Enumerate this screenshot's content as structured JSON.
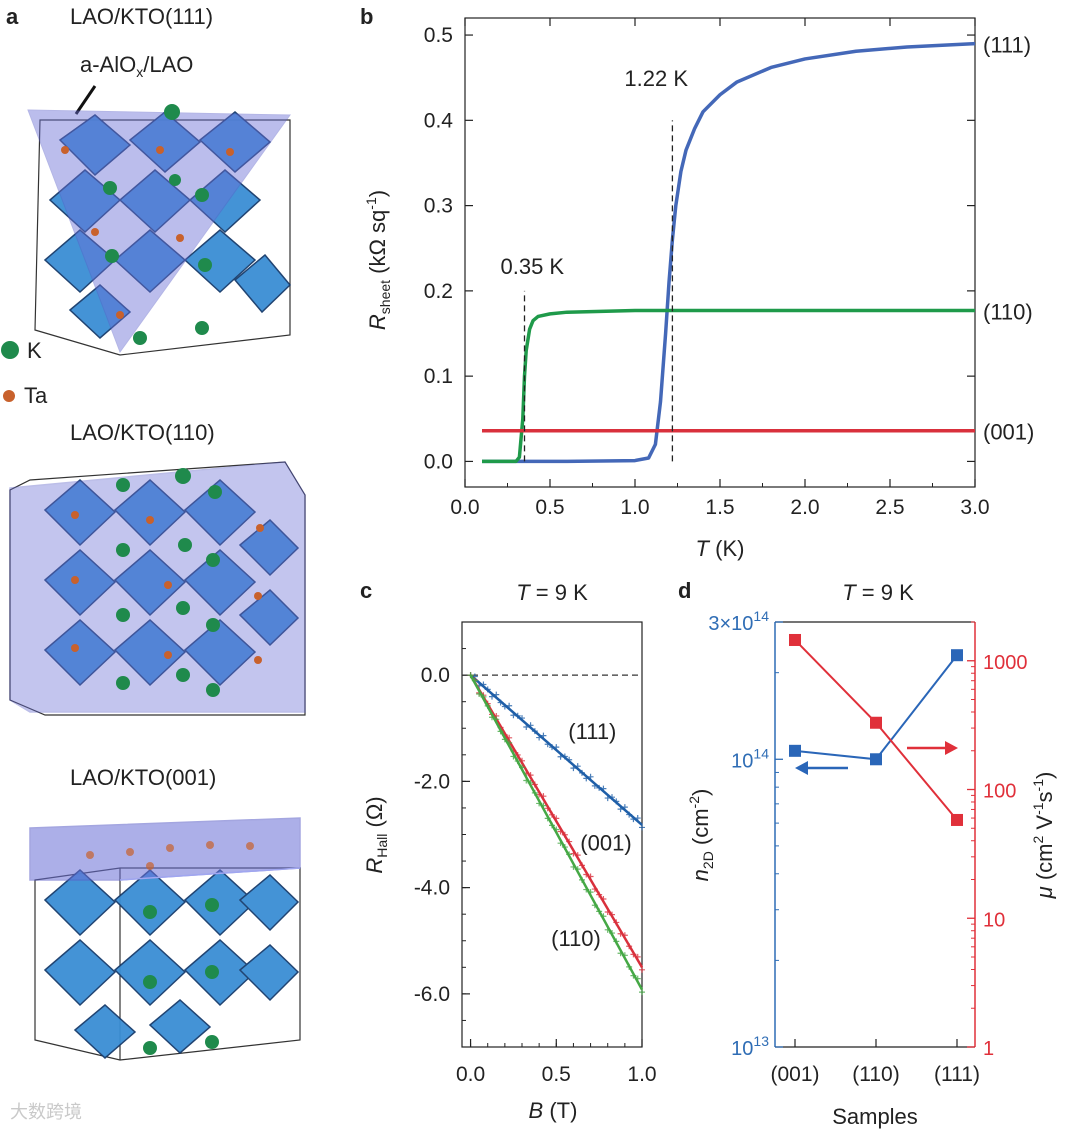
{
  "panel_a": {
    "label": "a",
    "structures": [
      {
        "title": "LAO/KTO(111)",
        "annotation": "a-AlO",
        "annotation_sub": "x",
        "annotation_rest": "/LAO"
      },
      {
        "title": "LAO/KTO(110)"
      },
      {
        "title": "LAO/KTO(001)"
      }
    ],
    "legend": [
      {
        "label": "K",
        "color": "#1f8a4c"
      },
      {
        "label": "Ta",
        "color": "#c8612c"
      }
    ]
  },
  "watermark": "大数跨境",
  "chart_data": [
    {
      "panel": "b",
      "type": "line",
      "title": "",
      "xlabel": "T",
      "xlabel_unit": " (K)",
      "ylabel": "R",
      "ylabel_sub": "sheet",
      "ylabel_unit": " (kΩ sq",
      "ylabel_sup": "-1",
      "ylabel_close": ")",
      "xlim": [
        0.0,
        3.0
      ],
      "ylim": [
        -0.03,
        0.52
      ],
      "xticks": [
        "0.0",
        "0.5",
        "1.0",
        "1.5",
        "2.0",
        "2.5",
        "3.0"
      ],
      "xtick_values": [
        0.0,
        0.5,
        1.0,
        1.5,
        2.0,
        2.5,
        3.0
      ],
      "yticks": [
        "0.0",
        "0.1",
        "0.2",
        "0.3",
        "0.4",
        "0.5"
      ],
      "ytick_values": [
        0.0,
        0.1,
        0.2,
        0.3,
        0.4,
        0.5
      ],
      "series": [
        {
          "name": "(111)",
          "color": "#4468b8",
          "Tc": 1.22,
          "Rn": 0.49,
          "x": [
            0.1,
            0.6,
            1.0,
            1.08,
            1.12,
            1.15,
            1.18,
            1.2,
            1.22,
            1.24,
            1.27,
            1.3,
            1.35,
            1.4,
            1.5,
            1.6,
            1.8,
            2.0,
            2.3,
            2.6,
            3.0
          ],
          "y": [
            0.0,
            0.0,
            0.001,
            0.004,
            0.02,
            0.07,
            0.15,
            0.21,
            0.26,
            0.3,
            0.34,
            0.365,
            0.39,
            0.41,
            0.43,
            0.445,
            0.462,
            0.472,
            0.481,
            0.486,
            0.49
          ]
        },
        {
          "name": "(110)",
          "color": "#1f9a4a",
          "Tc": 0.35,
          "Rn": 0.177,
          "x": [
            0.1,
            0.3,
            0.32,
            0.34,
            0.35,
            0.36,
            0.38,
            0.4,
            0.43,
            0.5,
            0.6,
            0.8,
            1.0,
            1.5,
            2.0,
            3.0
          ],
          "y": [
            0.0,
            0.0,
            0.005,
            0.05,
            0.1,
            0.13,
            0.155,
            0.165,
            0.17,
            0.173,
            0.175,
            0.176,
            0.177,
            0.177,
            0.177,
            0.177
          ]
        },
        {
          "name": "(001)",
          "color": "#d9303c",
          "x": [
            0.1,
            3.0
          ],
          "y": [
            0.036,
            0.036
          ]
        }
      ],
      "annotations": [
        {
          "text": "1.22 K",
          "color": "#2f7fc1",
          "x": 1.22
        },
        {
          "text": "0.35 K",
          "color": "#2aa04c",
          "x": 0.35
        }
      ]
    },
    {
      "panel": "c",
      "type": "line",
      "title_var": "T",
      "title_rest": " = 9 K",
      "xlabel": "B",
      "xlabel_unit": " (T)",
      "ylabel": "R",
      "ylabel_sub": "Hall",
      "ylabel_unit": " (Ω)",
      "xlim": [
        -0.05,
        1.0
      ],
      "ylim": [
        -7.0,
        1.0
      ],
      "xticks": [
        "0.0",
        "0.5",
        "1.0"
      ],
      "xtick_values": [
        0.0,
        0.5,
        1.0
      ],
      "yticks": [
        "0.0",
        "-2.0",
        "-4.0",
        "-6.0"
      ],
      "ytick_values": [
        0.0,
        -2.0,
        -4.0,
        -6.0
      ],
      "series": [
        {
          "name": "(111)",
          "color": "#1f5fa8",
          "label_color": "#2f6db5",
          "x": [
            0.0,
            1.0
          ],
          "y": [
            0.0,
            -2.82
          ]
        },
        {
          "name": "(001)",
          "color": "#d9303c",
          "label_color": "#d9303c",
          "x": [
            0.0,
            1.0
          ],
          "y": [
            0.0,
            -5.5
          ]
        },
        {
          "name": "(110)",
          "color": "#45a845",
          "label_color": "#3a9b45",
          "x": [
            0.0,
            1.0
          ],
          "y": [
            0.0,
            -5.92
          ]
        }
      ]
    },
    {
      "panel": "d",
      "type": "scatter",
      "title_var": "T",
      "title_rest": " = 9 K",
      "xlabel": "Samples",
      "categories": [
        "(001)",
        "(110)",
        "(111)"
      ],
      "left_axis": {
        "label": "n",
        "label_sub": "2D",
        "label_unit": " (cm",
        "label_sup": "-2",
        "label_close": ")",
        "scale": "log",
        "range": [
          10000000000000.0,
          300000000000000.0
        ],
        "color": "#2f6db5",
        "ticks": [
          {
            "value": 10000000000000.0,
            "base": "10",
            "exp": "13"
          },
          {
            "value": 100000000000000.0,
            "base": "10",
            "exp": "14"
          },
          {
            "value": 300000000000000.0,
            "base": "3×10",
            "exp": "14"
          }
        ]
      },
      "right_axis": {
        "label": "μ",
        "label_unit": " (cm",
        "label_sup1": "2",
        "label_mid": " V",
        "label_sup2": "-1",
        "label_mid2": "s",
        "label_sup3": "-1",
        "label_close": ")",
        "scale": "log",
        "range": [
          1,
          2000
        ],
        "color": "#e0303a",
        "ticks": [
          {
            "value": 1,
            "text": "1"
          },
          {
            "value": 10,
            "text": "10"
          },
          {
            "value": 100,
            "text": "100"
          },
          {
            "value": 1000,
            "text": "1000"
          }
        ]
      },
      "series": [
        {
          "name": "n2D",
          "axis": "left",
          "color": "#2a66b8",
          "values": [
            107000000000000.0,
            100000000000000.0,
            230000000000000.0
          ]
        },
        {
          "name": "mu",
          "axis": "right",
          "color": "#e0303a",
          "values": [
            1450,
            330,
            58
          ]
        }
      ]
    }
  ]
}
